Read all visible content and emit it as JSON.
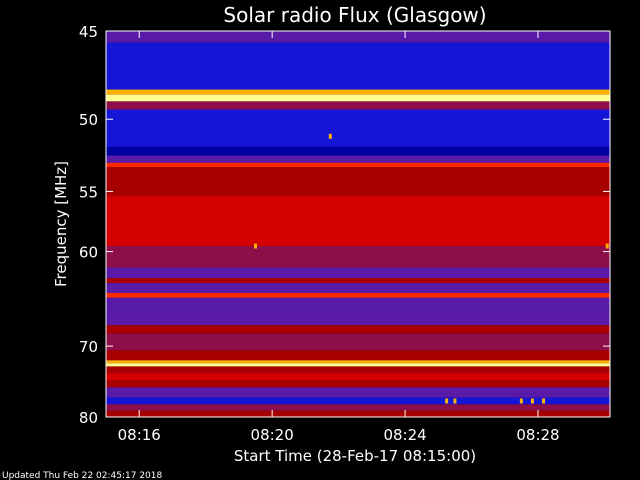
{
  "chart_data": {
    "type": "heatmap",
    "title": "Solar radio Flux (Glasgow)",
    "ylabel": "Frequency [MHz]",
    "xlabel": "Start Time (28-Feb-17 08:15:00)",
    "footer": "Updated Thu Feb 22 02:45:17 2018",
    "ylim": [
      45,
      80
    ],
    "y_ticks": [
      45,
      50,
      55,
      60,
      70,
      80
    ],
    "xlim": [
      "08:15:00",
      "08:30:10"
    ],
    "x_ticks": [
      "08:16",
      "08:20",
      "08:24",
      "08:28"
    ],
    "colormap": [
      "#0000a0",
      "#1515d8",
      "#5a1aa8",
      "#8e0e4a",
      "#a80000",
      "#d40000",
      "#ff2a00",
      "#ffb000",
      "#ffff90"
    ],
    "bands": [
      {
        "f0": 45.0,
        "f1": 45.6,
        "level": 0.2
      },
      {
        "f0": 45.6,
        "f1": 48.2,
        "level": 0.08
      },
      {
        "f0": 48.2,
        "f1": 48.5,
        "level": 0.9
      },
      {
        "f0": 48.5,
        "f1": 48.9,
        "level": 0.98
      },
      {
        "f0": 48.9,
        "f1": 49.4,
        "level": 0.35
      },
      {
        "f0": 49.4,
        "f1": 51.8,
        "level": 0.1
      },
      {
        "f0": 51.8,
        "f1": 52.4,
        "level": 0.05
      },
      {
        "f0": 52.4,
        "f1": 52.9,
        "level": 0.3
      },
      {
        "f0": 52.9,
        "f1": 53.2,
        "level": 0.8
      },
      {
        "f0": 53.2,
        "f1": 55.3,
        "level": 0.5
      },
      {
        "f0": 55.3,
        "f1": 57.6,
        "level": 0.62
      },
      {
        "f0": 57.6,
        "f1": 59.5,
        "level": 0.58
      },
      {
        "f0": 59.5,
        "f1": 60.5,
        "level": 0.4
      },
      {
        "f0": 60.5,
        "f1": 61.5,
        "level": 0.32
      },
      {
        "f0": 61.5,
        "f1": 62.5,
        "level": 0.25
      },
      {
        "f0": 62.5,
        "f1": 63.0,
        "level": 0.45
      },
      {
        "f0": 63.0,
        "f1": 64.0,
        "level": 0.3
      },
      {
        "f0": 64.0,
        "f1": 64.5,
        "level": 0.7
      },
      {
        "f0": 64.5,
        "f1": 65.5,
        "level": 0.22
      },
      {
        "f0": 65.5,
        "f1": 67.5,
        "level": 0.3
      },
      {
        "f0": 67.5,
        "f1": 68.5,
        "level": 0.48
      },
      {
        "f0": 68.5,
        "f1": 70.5,
        "level": 0.32
      },
      {
        "f0": 70.5,
        "f1": 71.8,
        "level": 0.5
      },
      {
        "f0": 71.8,
        "f1": 72.2,
        "level": 0.88
      },
      {
        "f0": 72.2,
        "f1": 72.6,
        "level": 0.95
      },
      {
        "f0": 72.6,
        "f1": 73.5,
        "level": 0.5
      },
      {
        "f0": 73.5,
        "f1": 74.5,
        "level": 0.65
      },
      {
        "f0": 74.5,
        "f1": 75.5,
        "level": 0.52
      },
      {
        "f0": 75.5,
        "f1": 77.0,
        "level": 0.3
      },
      {
        "f0": 77.0,
        "f1": 78.0,
        "level": 0.18
      },
      {
        "f0": 78.0,
        "f1": 79.0,
        "level": 0.38
      },
      {
        "f0": 79.0,
        "f1": 80.0,
        "level": 0.55
      }
    ],
    "spots": [
      {
        "t": "08:19:30",
        "f": 59.5,
        "level": 0.85
      },
      {
        "t": "08:21:45",
        "f": 51.1,
        "level": 0.82
      },
      {
        "t": "08:25:15",
        "f": 77.5,
        "level": 0.85
      },
      {
        "t": "08:25:30",
        "f": 77.5,
        "level": 0.85
      },
      {
        "t": "08:27:30",
        "f": 77.5,
        "level": 0.85
      },
      {
        "t": "08:27:50",
        "f": 77.5,
        "level": 0.85
      },
      {
        "t": "08:28:10",
        "f": 77.5,
        "level": 0.85
      },
      {
        "t": "08:30:05",
        "f": 59.5,
        "level": 0.85
      }
    ]
  }
}
